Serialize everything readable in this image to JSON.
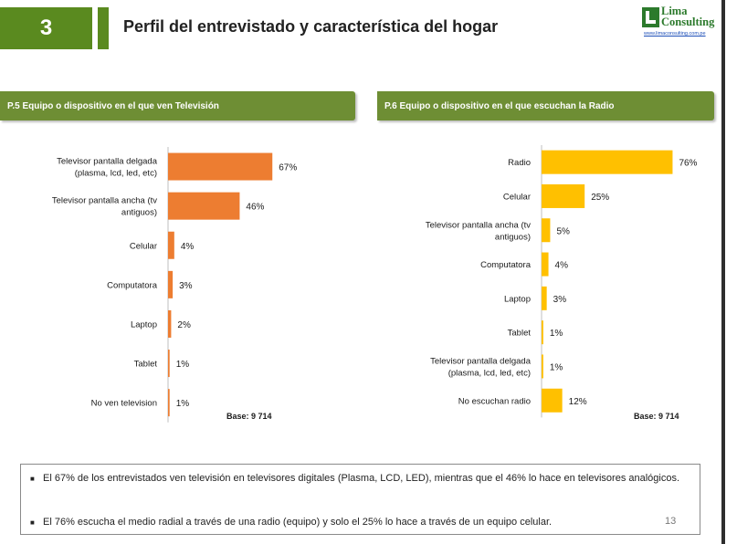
{
  "header": {
    "section_number": "3",
    "title": "Perfil del entrevistado y característica del hogar",
    "logo_name_line1": "Lima",
    "logo_name_line2": "Consulting",
    "logo_url": "www.limaconsulting.com.pe"
  },
  "colors": {
    "brand_green": "#5a8a1f",
    "panel_header": "#6e8e34",
    "tv_bars": "#ed7d31",
    "radio_bars": "#ffc000"
  },
  "chart_data": [
    {
      "type": "bar",
      "orientation": "horizontal",
      "title": "P.5 Equipo o dispositivo en el que ven Televisión",
      "categories": [
        "Televisor pantalla delgada (plasma, lcd, led, etc)",
        "Televisor pantalla ancha (tv antiguos)",
        "Celular",
        "Computatora",
        "Laptop",
        "Tablet",
        "No ven television"
      ],
      "category_lines": [
        [
          "Televisor pantalla delgada",
          "(plasma, lcd, led, etc)"
        ],
        [
          "Televisor pantalla ancha (tv",
          "antiguos)"
        ],
        [
          "Celular"
        ],
        [
          "Computatora"
        ],
        [
          "Laptop"
        ],
        [
          "Tablet"
        ],
        [
          "No ven television"
        ]
      ],
      "values": [
        67,
        46,
        4,
        3,
        2,
        1,
        1
      ],
      "value_labels": [
        "67%",
        "46%",
        "4%",
        "3%",
        "2%",
        "1%",
        "1%"
      ],
      "unit": "%",
      "xlim": [
        0,
        100
      ],
      "base": "Base: 9 714"
    },
    {
      "type": "bar",
      "orientation": "horizontal",
      "title": "P.6 Equipo o dispositivo en el que escuchan la Radio",
      "categories": [
        "Radio",
        "Celular",
        "Televisor pantalla ancha (tv antiguos)",
        "Computatora",
        "Laptop",
        "Tablet",
        "Televisor pantalla delgada (plasma, lcd, led, etc)",
        "No escuchan radio"
      ],
      "category_lines": [
        [
          "Radio"
        ],
        [
          "Celular"
        ],
        [
          "Televisor pantalla ancha (tv",
          "antiguos)"
        ],
        [
          "Computatora"
        ],
        [
          "Laptop"
        ],
        [
          "Tablet"
        ],
        [
          "Televisor pantalla delgada",
          "(plasma, lcd, led, etc)"
        ],
        [
          "No escuchan radio"
        ]
      ],
      "values": [
        76,
        25,
        5,
        4,
        3,
        1,
        1,
        12
      ],
      "value_labels": [
        "76%",
        "25%",
        "5%",
        "4%",
        "3%",
        "1%",
        "1%",
        "12%"
      ],
      "unit": "%",
      "xlim": [
        0,
        100
      ],
      "base": "Base: 9 714"
    }
  ],
  "notes": [
    "El 67% de los entrevistados ven televisión en televisores digitales (Plasma, LCD, LED), mientras que el 46% lo hace en televisores analógicos.",
    "El 76% escucha el medio radial a través de una radio (equipo) y solo el 25% lo hace a través de un equipo celular."
  ],
  "page_number": "13"
}
